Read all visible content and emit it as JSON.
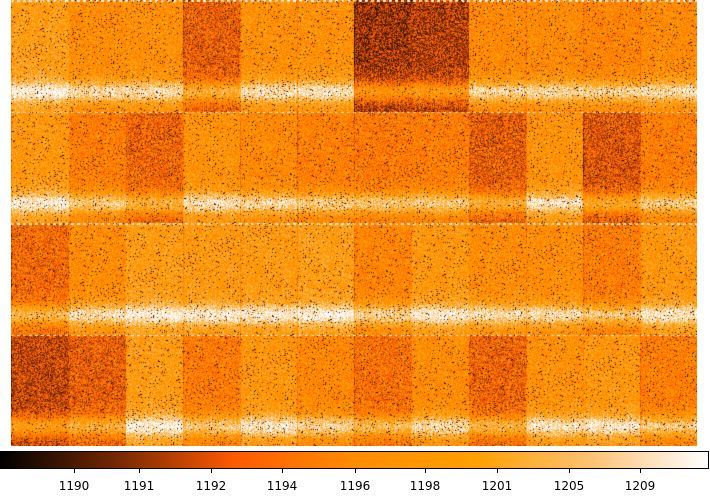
{
  "colormap": {
    "name": "heat",
    "stops": [
      "#000000",
      "#7a2a00",
      "#ff5a00",
      "#ff8c00",
      "#ffa000",
      "#ffc070",
      "#ffffff"
    ]
  },
  "colorbar": {
    "tick_labels": [
      "1190",
      "1191",
      "1192",
      "1194",
      "1196",
      "1198",
      "1201",
      "1205",
      "1209"
    ],
    "tick_fractions": [
      0.104,
      0.196,
      0.297,
      0.398,
      0.5,
      0.6,
      0.701,
      0.802,
      0.902
    ]
  },
  "image": {
    "kind": "ccd-mosaic-frame",
    "grid_rows": 4,
    "grid_cols": 12
  }
}
